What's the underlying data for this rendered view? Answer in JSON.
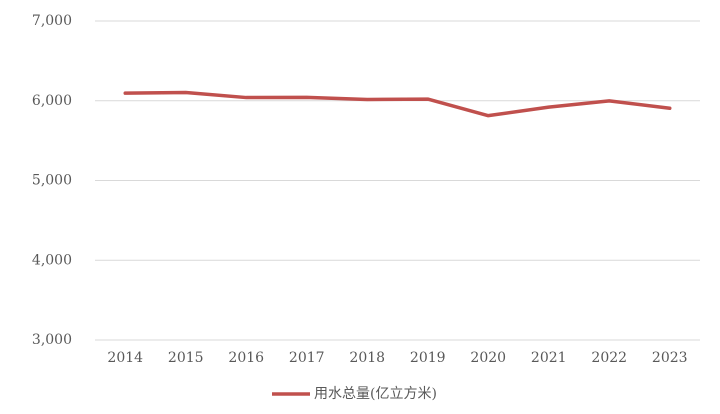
{
  "chart_data": {
    "type": "line",
    "categories": [
      "2014",
      "2015",
      "2016",
      "2017",
      "2018",
      "2019",
      "2020",
      "2021",
      "2022",
      "2023"
    ],
    "series": [
      {
        "name": "用水总量(亿立方米)",
        "color": "#c0504d",
        "values": [
          6095,
          6103,
          6040,
          6043,
          6016,
          6021,
          5813,
          5920,
          5998,
          5906
        ]
      }
    ],
    "ylim": [
      3000,
      7000
    ],
    "yticks": [
      {
        "value": 3000,
        "label": "3,000"
      },
      {
        "value": 4000,
        "label": "4,000"
      },
      {
        "value": 5000,
        "label": "5,000"
      },
      {
        "value": 6000,
        "label": "6,000"
      },
      {
        "value": 7000,
        "label": "7,000"
      }
    ],
    "grid": true,
    "legend": "bottom"
  }
}
